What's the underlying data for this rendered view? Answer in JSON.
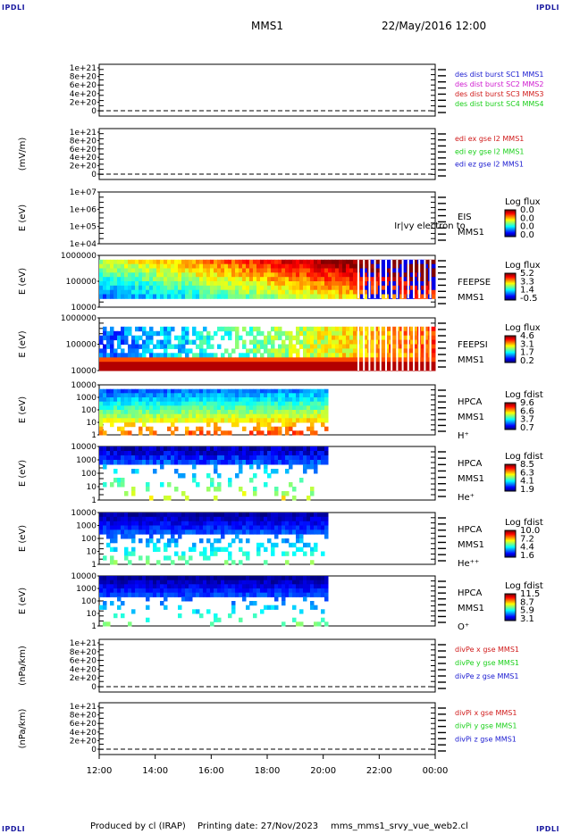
{
  "corners": {
    "tl": "IPDLI",
    "tr": "IPDLI",
    "bl": "IPDLI",
    "br": "IPDLI"
  },
  "header": {
    "spacecraft": "MMS1",
    "date": "22/May/2016 12:00"
  },
  "footer": {
    "produced_by": "Produced by cl (IRAP)",
    "printing_date": "Printing date: 27/Nov/2023",
    "filename": "mms_mms1_srvy_vue_web2.cl"
  },
  "colors": {
    "blue": "#1a1ad0",
    "magenta": "#d01ad0",
    "red": "#d01a1a",
    "green": "#1ad01a"
  },
  "chart_data": [
    {
      "type": "line",
      "id": "p1",
      "ylabel": "",
      "ytick_labels": [
        "1e+21",
        "8e+20",
        "6e+20",
        "4e+20",
        "2e+20",
        "0"
      ],
      "legend": [
        {
          "text": "des dist burst SC1 MMS1",
          "color": "blue"
        },
        {
          "text": "des dist burst SC2 MMS2",
          "color": "magenta"
        },
        {
          "text": "des dist burst SC3 MMS3",
          "color": "red"
        },
        {
          "text": "des dist burst SC4 MMS4",
          "color": "green"
        }
      ]
    },
    {
      "type": "line",
      "id": "p2",
      "ylabel": "(mV/m)",
      "ytick_labels": [
        "1e+21",
        "8e+20",
        "6e+20",
        "4e+20",
        "2e+20",
        "0"
      ],
      "legend": [
        {
          "text": "edi ex gse l2 MMS1",
          "color": "red"
        },
        {
          "text": "edi ey gse l2 MMS1",
          "color": "green"
        },
        {
          "text": "edi ez gse l2 MMS1",
          "color": "blue"
        }
      ]
    },
    {
      "type": "heatmap",
      "id": "p3",
      "ylabel": "E (eV)",
      "ytick_labels": [
        "1e+07",
        "1e+06",
        "1e+05",
        "1e+04"
      ],
      "side": [
        "EIS",
        "MMS1"
      ],
      "overlay": "Ir|vy electron to",
      "cbar_title": "Log flux",
      "cbar_ticks": [
        "0.0",
        "0.0",
        "0.0",
        "0.0"
      ]
    },
    {
      "type": "heatmap",
      "id": "p4",
      "ylabel": "E (eV)",
      "ytick_labels": [
        "1000000",
        "100000",
        "10000"
      ],
      "side": [
        "FEEPSE",
        "MMS1"
      ],
      "cbar_title": "Log flux",
      "cbar_ticks": [
        "5.2",
        "3.3",
        "1.4",
        "-0.5"
      ]
    },
    {
      "type": "heatmap",
      "id": "p5",
      "ylabel": "E (eV)",
      "ytick_labels": [
        "1000000",
        "100000",
        "10000"
      ],
      "side": [
        "FEEPSI",
        "MMS1"
      ],
      "cbar_title": "Log flux",
      "cbar_ticks": [
        "4.6",
        "3.1",
        "1.7",
        "0.2"
      ]
    },
    {
      "type": "heatmap",
      "id": "p6",
      "ylabel": "E (eV)",
      "ytick_labels": [
        "10000",
        "1000",
        "100",
        "10",
        "1"
      ],
      "side": [
        "HPCA",
        "MMS1",
        "H⁺"
      ],
      "cbar_title": "Log fdist",
      "cbar_ticks": [
        "9.6",
        "6.6",
        "3.7",
        "0.7"
      ]
    },
    {
      "type": "heatmap",
      "id": "p7",
      "ylabel": "E (eV)",
      "ytick_labels": [
        "10000",
        "1000",
        "100",
        "10",
        "1"
      ],
      "side": [
        "HPCA",
        "MMS1",
        "He⁺"
      ],
      "cbar_title": "Log fdist",
      "cbar_ticks": [
        "8.5",
        "6.3",
        "4.1",
        "1.9"
      ]
    },
    {
      "type": "heatmap",
      "id": "p8",
      "ylabel": "E (eV)",
      "ytick_labels": [
        "10000",
        "1000",
        "100",
        "10",
        "1"
      ],
      "side": [
        "HPCA",
        "MMS1",
        "He⁺⁺"
      ],
      "cbar_title": "Log fdist",
      "cbar_ticks": [
        "10.0",
        "7.2",
        "4.4",
        "1.6"
      ]
    },
    {
      "type": "heatmap",
      "id": "p9",
      "ylabel": "E (eV)",
      "ytick_labels": [
        "10000",
        "1000",
        "100",
        "10",
        "1"
      ],
      "side": [
        "HPCA",
        "MMS1",
        "O⁺"
      ],
      "cbar_title": "Log fdist",
      "cbar_ticks": [
        "11.5",
        "8.7",
        "5.9",
        "3.1"
      ]
    },
    {
      "type": "line",
      "id": "p10",
      "ylabel": "(nPa/km)",
      "ytick_labels": [
        "1e+21",
        "8e+20",
        "6e+20",
        "4e+20",
        "2e+20",
        "0"
      ],
      "legend": [
        {
          "text": "divPe x gse MMS1",
          "color": "red"
        },
        {
          "text": "divPe y gse MMS1",
          "color": "green"
        },
        {
          "text": "divPe z gse MMS1",
          "color": "blue"
        }
      ]
    },
    {
      "type": "line",
      "id": "p11",
      "ylabel": "(nPa/km)",
      "ytick_labels": [
        "1e+21",
        "8e+20",
        "6e+20",
        "4e+20",
        "2e+20",
        "0"
      ],
      "legend": [
        {
          "text": "divPi x gse MMS1",
          "color": "red"
        },
        {
          "text": "divPi y gse MMS1",
          "color": "green"
        },
        {
          "text": "divPi z gse MMS1",
          "color": "blue"
        }
      ]
    }
  ],
  "x_axis": {
    "tick_labels": [
      "12:00",
      "14:00",
      "16:00",
      "18:00",
      "20:00",
      "22:00",
      "00:00"
    ]
  }
}
